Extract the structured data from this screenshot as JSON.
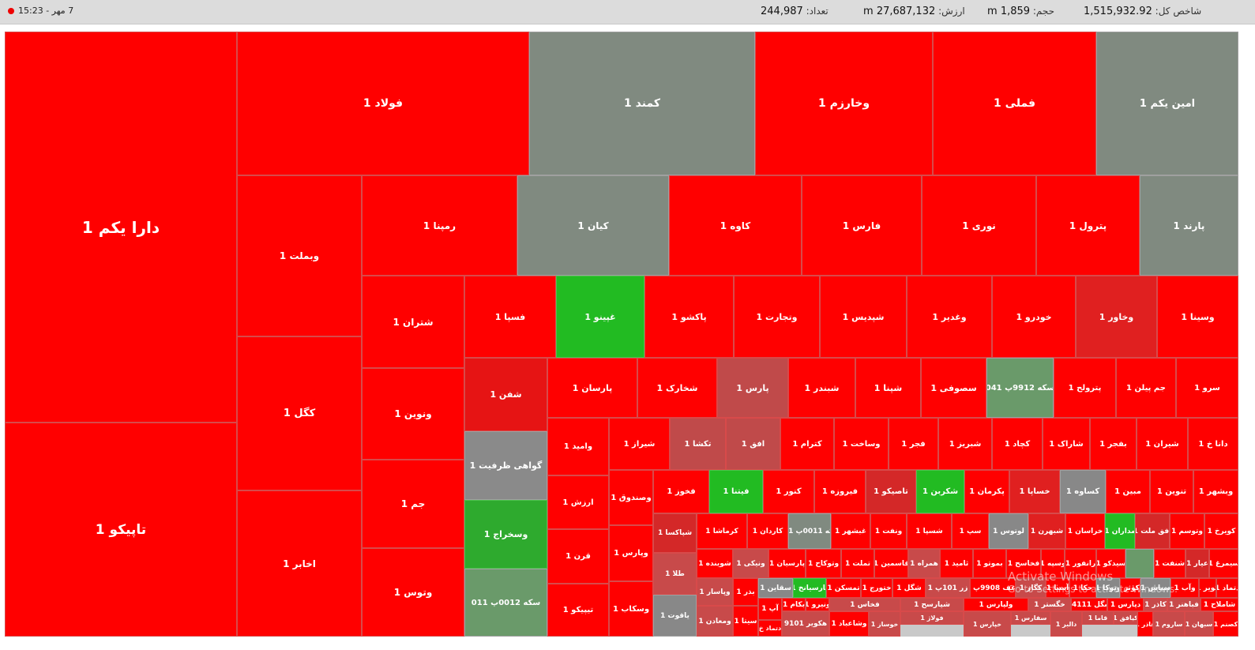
{
  "header": {
    "index_label": "شاخص کل:",
    "index_value": "1,515,932.92",
    "volume_label": "حجم:",
    "volume_value": "1,859 m",
    "value_label": "ارزش:",
    "value_value": "27,687,132 m",
    "count_label": "تعداد:",
    "count_value": "244,987",
    "datetime": "7 مهر - 15:23"
  },
  "colors": {
    "red": "#ff0000",
    "dark_red": "#d42828",
    "gray": "#808a80",
    "green": "#22bb22",
    "gray_green": "#6a9a6a"
  },
  "tiles": [
    {
      "label": "دارا یکم 1",
      "c": "#ff0000"
    },
    {
      "label": "تاپیکو 1",
      "c": "#ff0000"
    },
    {
      "label": "فولاد 1",
      "c": "#ff0000"
    },
    {
      "label": "کمند 1",
      "c": "#808a80"
    },
    {
      "label": "وخارزم 1",
      "c": "#ff0000"
    },
    {
      "label": "فملی 1",
      "c": "#ff0000"
    },
    {
      "label": "امین یکم 1",
      "c": "#808a80"
    },
    {
      "label": "وبملت 1",
      "c": "#ff0000"
    },
    {
      "label": "کگل 1",
      "c": "#ff0000"
    },
    {
      "label": "اخابر 1",
      "c": "#ff0000"
    },
    {
      "label": "رمپنا 1",
      "c": "#ff0000"
    },
    {
      "label": "کیان 1",
      "c": "#808a80"
    },
    {
      "label": "کاوه 1",
      "c": "#ff0000"
    },
    {
      "label": "فارس 1",
      "c": "#ff0000"
    },
    {
      "label": "نوری 1",
      "c": "#ff0000"
    },
    {
      "label": "پترول 1",
      "c": "#ff0000"
    },
    {
      "label": "پارند 1",
      "c": "#808a80"
    },
    {
      "label": "شتران 1",
      "c": "#ff0000"
    },
    {
      "label": "ونوین 1",
      "c": "#ff0000"
    },
    {
      "label": "جم 1",
      "c": "#ff0000"
    },
    {
      "label": "وتوس 1",
      "c": "#ff0000"
    },
    {
      "label": "فسپا 1",
      "c": "#ff0000"
    },
    {
      "label": "غپینو 1",
      "c": "#22bb22"
    },
    {
      "label": "پاکشو 1",
      "c": "#ff0000"
    },
    {
      "label": "وتجارت 1",
      "c": "#ff0000"
    },
    {
      "label": "شپدیس 1",
      "c": "#ff0000"
    },
    {
      "label": "وغدیر 1",
      "c": "#ff0000"
    },
    {
      "label": "خودرو 1",
      "c": "#ff0000"
    },
    {
      "label": "وخاور 1",
      "c": "#e02020"
    },
    {
      "label": "وسینا 1",
      "c": "#ff0000"
    },
    {
      "label": "شفن 1",
      "c": "#e61414"
    },
    {
      "label": "گواهی ظرفیت 1",
      "c": "#8a8a8a"
    },
    {
      "label": "وسخراج 1",
      "c": "#2eaa2e"
    },
    {
      "label": "سکه 0012پ 011",
      "c": "#6a9a6a"
    },
    {
      "label": "پارسان 1",
      "c": "#ff0000"
    },
    {
      "label": "شخارک 1",
      "c": "#ff0000"
    },
    {
      "label": "پارس 1",
      "c": "#c04a4a"
    },
    {
      "label": "شبندر 1",
      "c": "#ff0000"
    },
    {
      "label": "شپنا 1",
      "c": "#ff0000"
    },
    {
      "label": "سصوفی 1",
      "c": "#ff0000"
    },
    {
      "label": "سکه 9912پ 041",
      "c": "#6a9a6a"
    },
    {
      "label": "پترولح 1",
      "c": "#ff0000"
    },
    {
      "label": "جم پیلن 1",
      "c": "#ff0000"
    },
    {
      "label": "سرو 1",
      "c": "#ff0000"
    },
    {
      "label": "وامید 1",
      "c": "#ff0000"
    },
    {
      "label": "ارزش 1",
      "c": "#ff0000"
    },
    {
      "label": "قرن 1",
      "c": "#ff0000"
    },
    {
      "label": "تیپیکو 1",
      "c": "#ff0000"
    },
    {
      "label": "شیراز 1",
      "c": "#ff0000"
    },
    {
      "label": "تکشا 1",
      "c": "#c04a4a"
    },
    {
      "label": "افق 1",
      "c": "#c04a4a"
    },
    {
      "label": "کترام 1",
      "c": "#ff0000"
    },
    {
      "label": "وساخت 1",
      "c": "#ff0000"
    },
    {
      "label": "فجر 1",
      "c": "#ff0000"
    },
    {
      "label": "شبریز 1",
      "c": "#ff0000"
    },
    {
      "label": "کچاد 1",
      "c": "#ff0000"
    },
    {
      "label": "شاراک 1",
      "c": "#ff0000"
    },
    {
      "label": "بفجر 1",
      "c": "#ff0000"
    },
    {
      "label": "شیران 1",
      "c": "#ff0000"
    },
    {
      "label": "دانا خ 1",
      "c": "#ff0000"
    },
    {
      "label": "وصندوق 1",
      "c": "#ff0000"
    },
    {
      "label": "وپارس 1",
      "c": "#ff0000"
    },
    {
      "label": "وسکاب 1",
      "c": "#ff0000"
    },
    {
      "label": "فخوز 1",
      "c": "#ff0000"
    },
    {
      "label": "فیتنا 1",
      "c": "#22bb22"
    },
    {
      "label": "کنور 1",
      "c": "#ff0000"
    },
    {
      "label": "فیروزه 1",
      "c": "#ff0000"
    },
    {
      "label": "تاصیکو 1",
      "c": "#d42828"
    },
    {
      "label": "شکربن 1",
      "c": "#22bb22"
    },
    {
      "label": "پکرمان 1",
      "c": "#ff0000"
    },
    {
      "label": "خساپا 1",
      "c": "#e02020"
    },
    {
      "label": "کساوه 1",
      "c": "#888888"
    },
    {
      "label": "مبین 1",
      "c": "#ff0000"
    },
    {
      "label": "تنوین 1",
      "c": "#ff0000"
    },
    {
      "label": "وبشهر 1",
      "c": "#ff0000"
    },
    {
      "label": "شپاکسا 1",
      "c": "#d42828"
    },
    {
      "label": "طلا 1",
      "c": "#c84a4a"
    },
    {
      "label": "یاقوت 1",
      "c": "#888888"
    },
    {
      "label": "کرماشا 1",
      "c": "#ff0000"
    },
    {
      "label": "کاردان 1",
      "c": "#ff0000"
    },
    {
      "label": "سکه 0011پ 021",
      "c": "#808a80"
    },
    {
      "label": "غبشهر 1",
      "c": "#ff0000"
    },
    {
      "label": "ونفت 1",
      "c": "#ff0000"
    },
    {
      "label": "شسپا 1",
      "c": "#ff0000"
    },
    {
      "label": "سپ 1",
      "c": "#ff0000"
    },
    {
      "label": "لوتوس 1",
      "c": "#888888"
    },
    {
      "label": "شبهرن 1",
      "c": "#e02020"
    },
    {
      "label": "خراسان 1",
      "c": "#ff0000"
    },
    {
      "label": "مداران 1",
      "c": "#22bb22"
    },
    {
      "label": "افق ملت 1",
      "c": "#d42828"
    },
    {
      "label": "وتوسم 1",
      "c": "#ff0000"
    },
    {
      "label": "کویرخ 1",
      "c": "#ff0000"
    },
    {
      "label": "شوینده 1",
      "c": "#ff0000"
    },
    {
      "label": "ونیکی 1",
      "c": "#c84a4a"
    },
    {
      "label": "پارسیان 1",
      "c": "#ff0000"
    },
    {
      "label": "وتوکاح 1",
      "c": "#ff0000"
    },
    {
      "label": "تملت 1",
      "c": "#ff0000"
    },
    {
      "label": "قاسمین 1",
      "c": "#ff0000"
    },
    {
      "label": "همراه 1",
      "c": "#c84a4a"
    },
    {
      "label": "ثامید 1",
      "c": "#ff0000"
    },
    {
      "label": "بموتو 1",
      "c": "#ff0000"
    },
    {
      "label": "فخاسح 1",
      "c": "#ff0000"
    },
    {
      "label": "وسپه 1",
      "c": "#ff0000"
    },
    {
      "label": "رانفور 1",
      "c": "#ff0000"
    },
    {
      "label": "سیدکو 1",
      "c": "#ff0000"
    },
    {
      "label": "",
      "c": "#6a9a6a"
    },
    {
      "label": "شنفت 1",
      "c": "#ff0000"
    },
    {
      "label": "عیار 1",
      "c": "#d42828"
    },
    {
      "label": "سیمرغ 1",
      "c": "#ff0000"
    },
    {
      "label": "وپاسار 1",
      "c": "#c84a4a"
    },
    {
      "label": "بذر 1",
      "c": "#ff0000"
    },
    {
      "label": "سقاین 1",
      "c": "#888888"
    },
    {
      "label": "پارسیانخ 1",
      "c": "#22bb22"
    },
    {
      "label": "تمسکن 1",
      "c": "#ff0000"
    },
    {
      "label": "ختورج 1",
      "c": "#ff0000"
    },
    {
      "label": "شگل 1",
      "c": "#ff0000"
    },
    {
      "label": "زر 101پ 1",
      "c": "#c84a4a"
    },
    {
      "label": "زعف 9908پ 1",
      "c": "#ff0000"
    },
    {
      "label": "کگاز 1",
      "c": "#c84a4a"
    },
    {
      "label": "آسیا 1",
      "c": "#ff0000"
    },
    {
      "label": "حکا 1",
      "c": "#ff0000"
    },
    {
      "label": "وتوکا 1",
      "c": "#888888"
    },
    {
      "label": "وکوثر 1",
      "c": "#ff0000"
    },
    {
      "label": "سپاس 1",
      "c": "#888888"
    },
    {
      "label": "وآب 1",
      "c": "#ff0000"
    },
    {
      "label": "کویر 1",
      "c": "#ff0000"
    },
    {
      "label": "دتماد 1",
      "c": "#ff0000"
    },
    {
      "label": "ومعادن 1",
      "c": "#c84a4a"
    },
    {
      "label": "سیتا 1",
      "c": "#ff0000"
    },
    {
      "label": "آپ 1",
      "c": "#ff0000"
    },
    {
      "label": "بکام 1",
      "c": "#ff0000"
    },
    {
      "label": "ونیرو 1",
      "c": "#ff0000"
    },
    {
      "label": "فخاس 1",
      "c": "#c84a4a"
    },
    {
      "label": "شپارسح 1",
      "c": "#c84a4a"
    },
    {
      "label": "ولپارس 1",
      "c": "#ff0000"
    },
    {
      "label": "خگستر 1",
      "c": "#c84a4a"
    },
    {
      "label": "سگل 14111",
      "c": "#ff0000"
    },
    {
      "label": "دپارس 1",
      "c": "#ff0000"
    },
    {
      "label": "کاذر 1",
      "c": "#c84a4a"
    },
    {
      "label": "فباهنر 1",
      "c": "#c84a4a"
    },
    {
      "label": "شاملاح 1",
      "c": "#ff0000"
    },
    {
      "label": "دتماد خ",
      "c": "#ff0000"
    },
    {
      "label": "هکویر 9101",
      "c": "#c84a4a"
    },
    {
      "label": "وشاعباد 1",
      "c": "#ff0000"
    },
    {
      "label": "خوساز 1",
      "c": "#c84a4a"
    },
    {
      "label": "فولاژ 1",
      "c": "#c84a4a"
    },
    {
      "label": "خپارس 1",
      "c": "#c84a4a"
    },
    {
      "label": "سفارس 1",
      "c": "#c84a4a"
    },
    {
      "label": "دالبر 1",
      "c": "#c84a4a"
    },
    {
      "label": "قاما 1",
      "c": "#c84a4a"
    },
    {
      "label": "کیافق 1",
      "c": "#c84a4a"
    },
    {
      "label": "غاذر 1",
      "c": "#ff0000"
    },
    {
      "label": "ساروم 1",
      "c": "#c84a4a"
    },
    {
      "label": "سبهان 1",
      "c": "#c84a4a"
    },
    {
      "label": "افران 1",
      "c": "#ff0000"
    },
    {
      "label": "کصنم 1",
      "c": "#ff0000"
    }
  ],
  "watermark": {
    "line1": "Activate Windows",
    "line2": "Go to Settings to activate Windows."
  }
}
